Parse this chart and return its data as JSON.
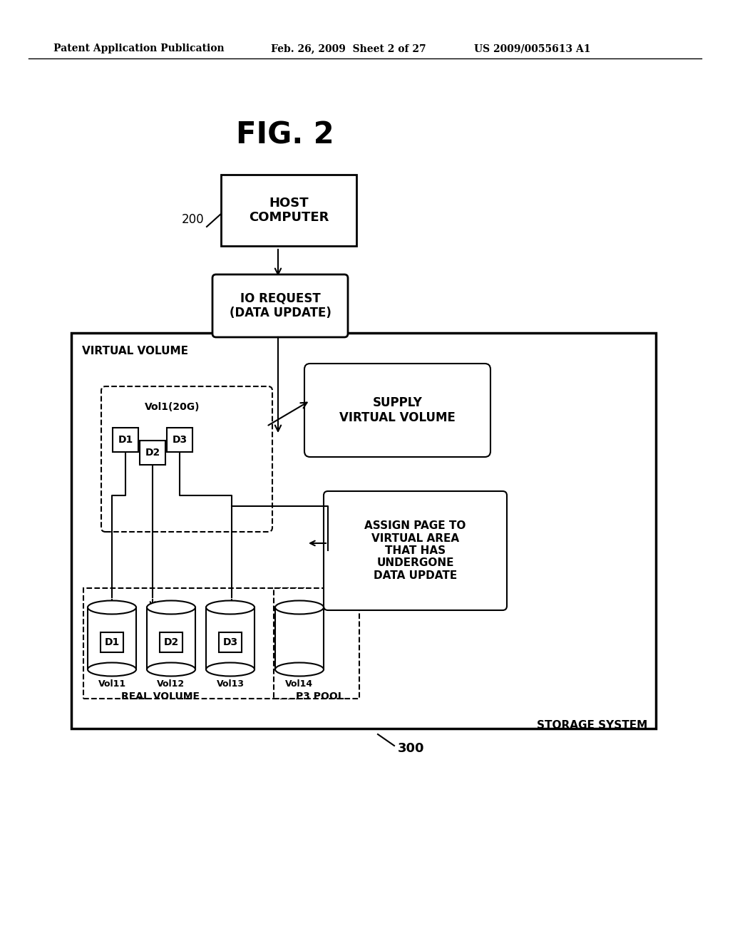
{
  "bg_color": "#ffffff",
  "header_left": "Patent Application Publication",
  "header_mid": "Feb. 26, 2009  Sheet 2 of 27",
  "header_right": "US 2009/0055613 A1",
  "fig_title": "FIG. 2",
  "label_200": "200",
  "label_300": "300",
  "host_box_text": "HOST\nCOMPUTER",
  "io_request_text": "IO REQUEST\n(DATA UPDATE)",
  "virtual_volume_label": "VIRTUAL VOLUME",
  "vol1_label": "Vol1(20G)",
  "supply_vv_text": "SUPPLY\nVIRTUAL VOLUME",
  "assign_page_text": "ASSIGN PAGE TO\nVIRTUAL AREA\nTHAT HAS\nUNDERGONE\nDATA UPDATE",
  "real_volume_label": "REAL VOLUME",
  "p3_pool_label": "P3 POOL",
  "storage_system_label": "STORAGE SYSTEM",
  "d_labels_top": [
    "D1",
    "D2",
    "D3"
  ],
  "d_labels_bottom": [
    "D1",
    "D2",
    "D3"
  ],
  "vol_labels": [
    "Vol11",
    "Vol12",
    "Vol13",
    "Vol14"
  ]
}
